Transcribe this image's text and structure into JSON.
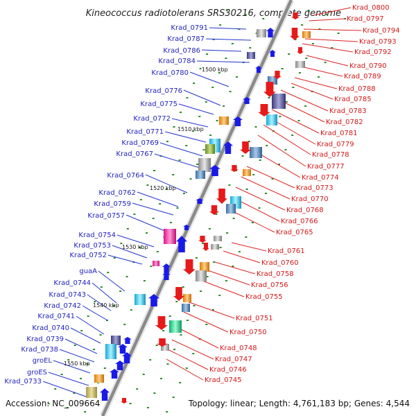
{
  "title": "Kineococcus radiotolerans SRS30216, complete genome",
  "accession": "Accession: NC_009664",
  "summary": "Topology: linear; Length: 4,761,183 bp; Genes: 4,544",
  "colors": {
    "left_label": "#1f1fbf",
    "right_label": "#d41717",
    "axis": "#8a8a8a",
    "tick": "#2a8a2a"
  },
  "kbp_marks": [
    "1500 kbp",
    "1510 kbp",
    "1520 kbp",
    "1530 kbp",
    "1540 kbp",
    "1550 kbp"
  ],
  "left_genes": [
    "Krad_0791",
    "Krad_0787",
    "Krad_0786",
    "Krad_0784",
    "Krad_0780",
    "Krad_0776",
    "Krad_0775",
    "Krad_0772",
    "Krad_0771",
    "Krad_0769",
    "Krad_0767",
    "Krad_0764",
    "Krad_0762",
    "Krad_0759",
    "Krad_0757",
    "Krad_0754",
    "Krad_0753",
    "Krad_0752",
    "guaA",
    "Krad_0744",
    "Krad_0743",
    "Krad_0742",
    "Krad_0741",
    "Krad_0740",
    "Krad_0739",
    "Krad_0738",
    "groEL",
    "groES",
    "Krad_0733"
  ],
  "right_genes": [
    "Krad_0800",
    "Krad_0797",
    "Krad_0794",
    "Krad_0793",
    "Krad_0792",
    "Krad_0790",
    "Krad_0789",
    "Krad_0788",
    "Krad_0785",
    "Krad_0783",
    "Krad_0782",
    "Krad_0781",
    "Krad_0779",
    "Krad_0778",
    "Krad_0777",
    "Krad_0774",
    "Krad_0773",
    "Krad_0770",
    "Krad_0768",
    "Krad_0766",
    "Krad_0765",
    "Krad_0761",
    "Krad_0760",
    "Krad_0758",
    "Krad_0756",
    "Krad_0755",
    "Krad_0751",
    "Krad_0750",
    "Krad_0748",
    "Krad_0747",
    "Krad_0746",
    "Krad_0745"
  ]
}
